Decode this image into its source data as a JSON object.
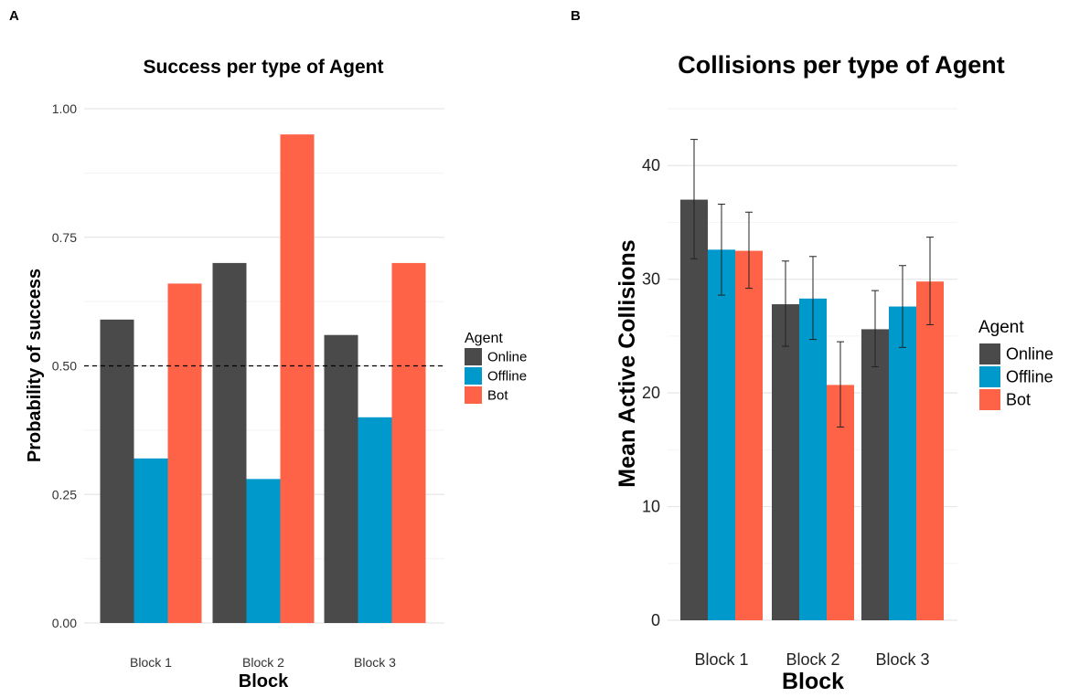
{
  "colors": {
    "Online": "#4a4a4a",
    "Offline": "#0099cc",
    "Bot": "#ff6347"
  },
  "chart_data": [
    {
      "panel": "A",
      "type": "bar",
      "title": "Success per type of Agent",
      "xlabel": "Block",
      "ylabel": "Probability of success",
      "categories": [
        "Block 1",
        "Block 2",
        "Block 3"
      ],
      "ylim": [
        0,
        1.0
      ],
      "yticks": [
        "0.00",
        "0.25",
        "0.50",
        "0.75",
        "1.00"
      ],
      "ytick_values": [
        0,
        0.25,
        0.5,
        0.75,
        1.0
      ],
      "reference_line": 0.5,
      "legend_title": "Agent",
      "series": [
        {
          "name": "Online",
          "values": [
            0.59,
            0.7,
            0.56
          ]
        },
        {
          "name": "Offline",
          "values": [
            0.32,
            0.28,
            0.4
          ]
        },
        {
          "name": "Bot",
          "values": [
            0.66,
            0.95,
            0.7
          ]
        }
      ]
    },
    {
      "panel": "B",
      "type": "bar",
      "title": "Collisions per type of Agent",
      "xlabel": "Block",
      "ylabel": "Mean Active Collisions",
      "categories": [
        "Block 1",
        "Block 2",
        "Block 3"
      ],
      "ylim": [
        0,
        45
      ],
      "yticks": [
        "0",
        "10",
        "20",
        "30",
        "40"
      ],
      "ytick_values": [
        0,
        10,
        20,
        30,
        40
      ],
      "legend_title": "Agent",
      "series": [
        {
          "name": "Online",
          "values": [
            37.0,
            27.8,
            25.6
          ],
          "err_low": [
            31.8,
            24.1,
            22.3
          ],
          "err_high": [
            42.3,
            31.6,
            29.0
          ]
        },
        {
          "name": "Offline",
          "values": [
            32.6,
            28.3,
            27.6
          ],
          "err_low": [
            28.6,
            24.7,
            24.0
          ],
          "err_high": [
            36.6,
            32.0,
            31.2
          ]
        },
        {
          "name": "Bot",
          "values": [
            32.5,
            20.7,
            29.8
          ],
          "err_low": [
            29.2,
            17.0,
            26.0
          ],
          "err_high": [
            35.9,
            24.5,
            33.7
          ]
        }
      ]
    }
  ]
}
